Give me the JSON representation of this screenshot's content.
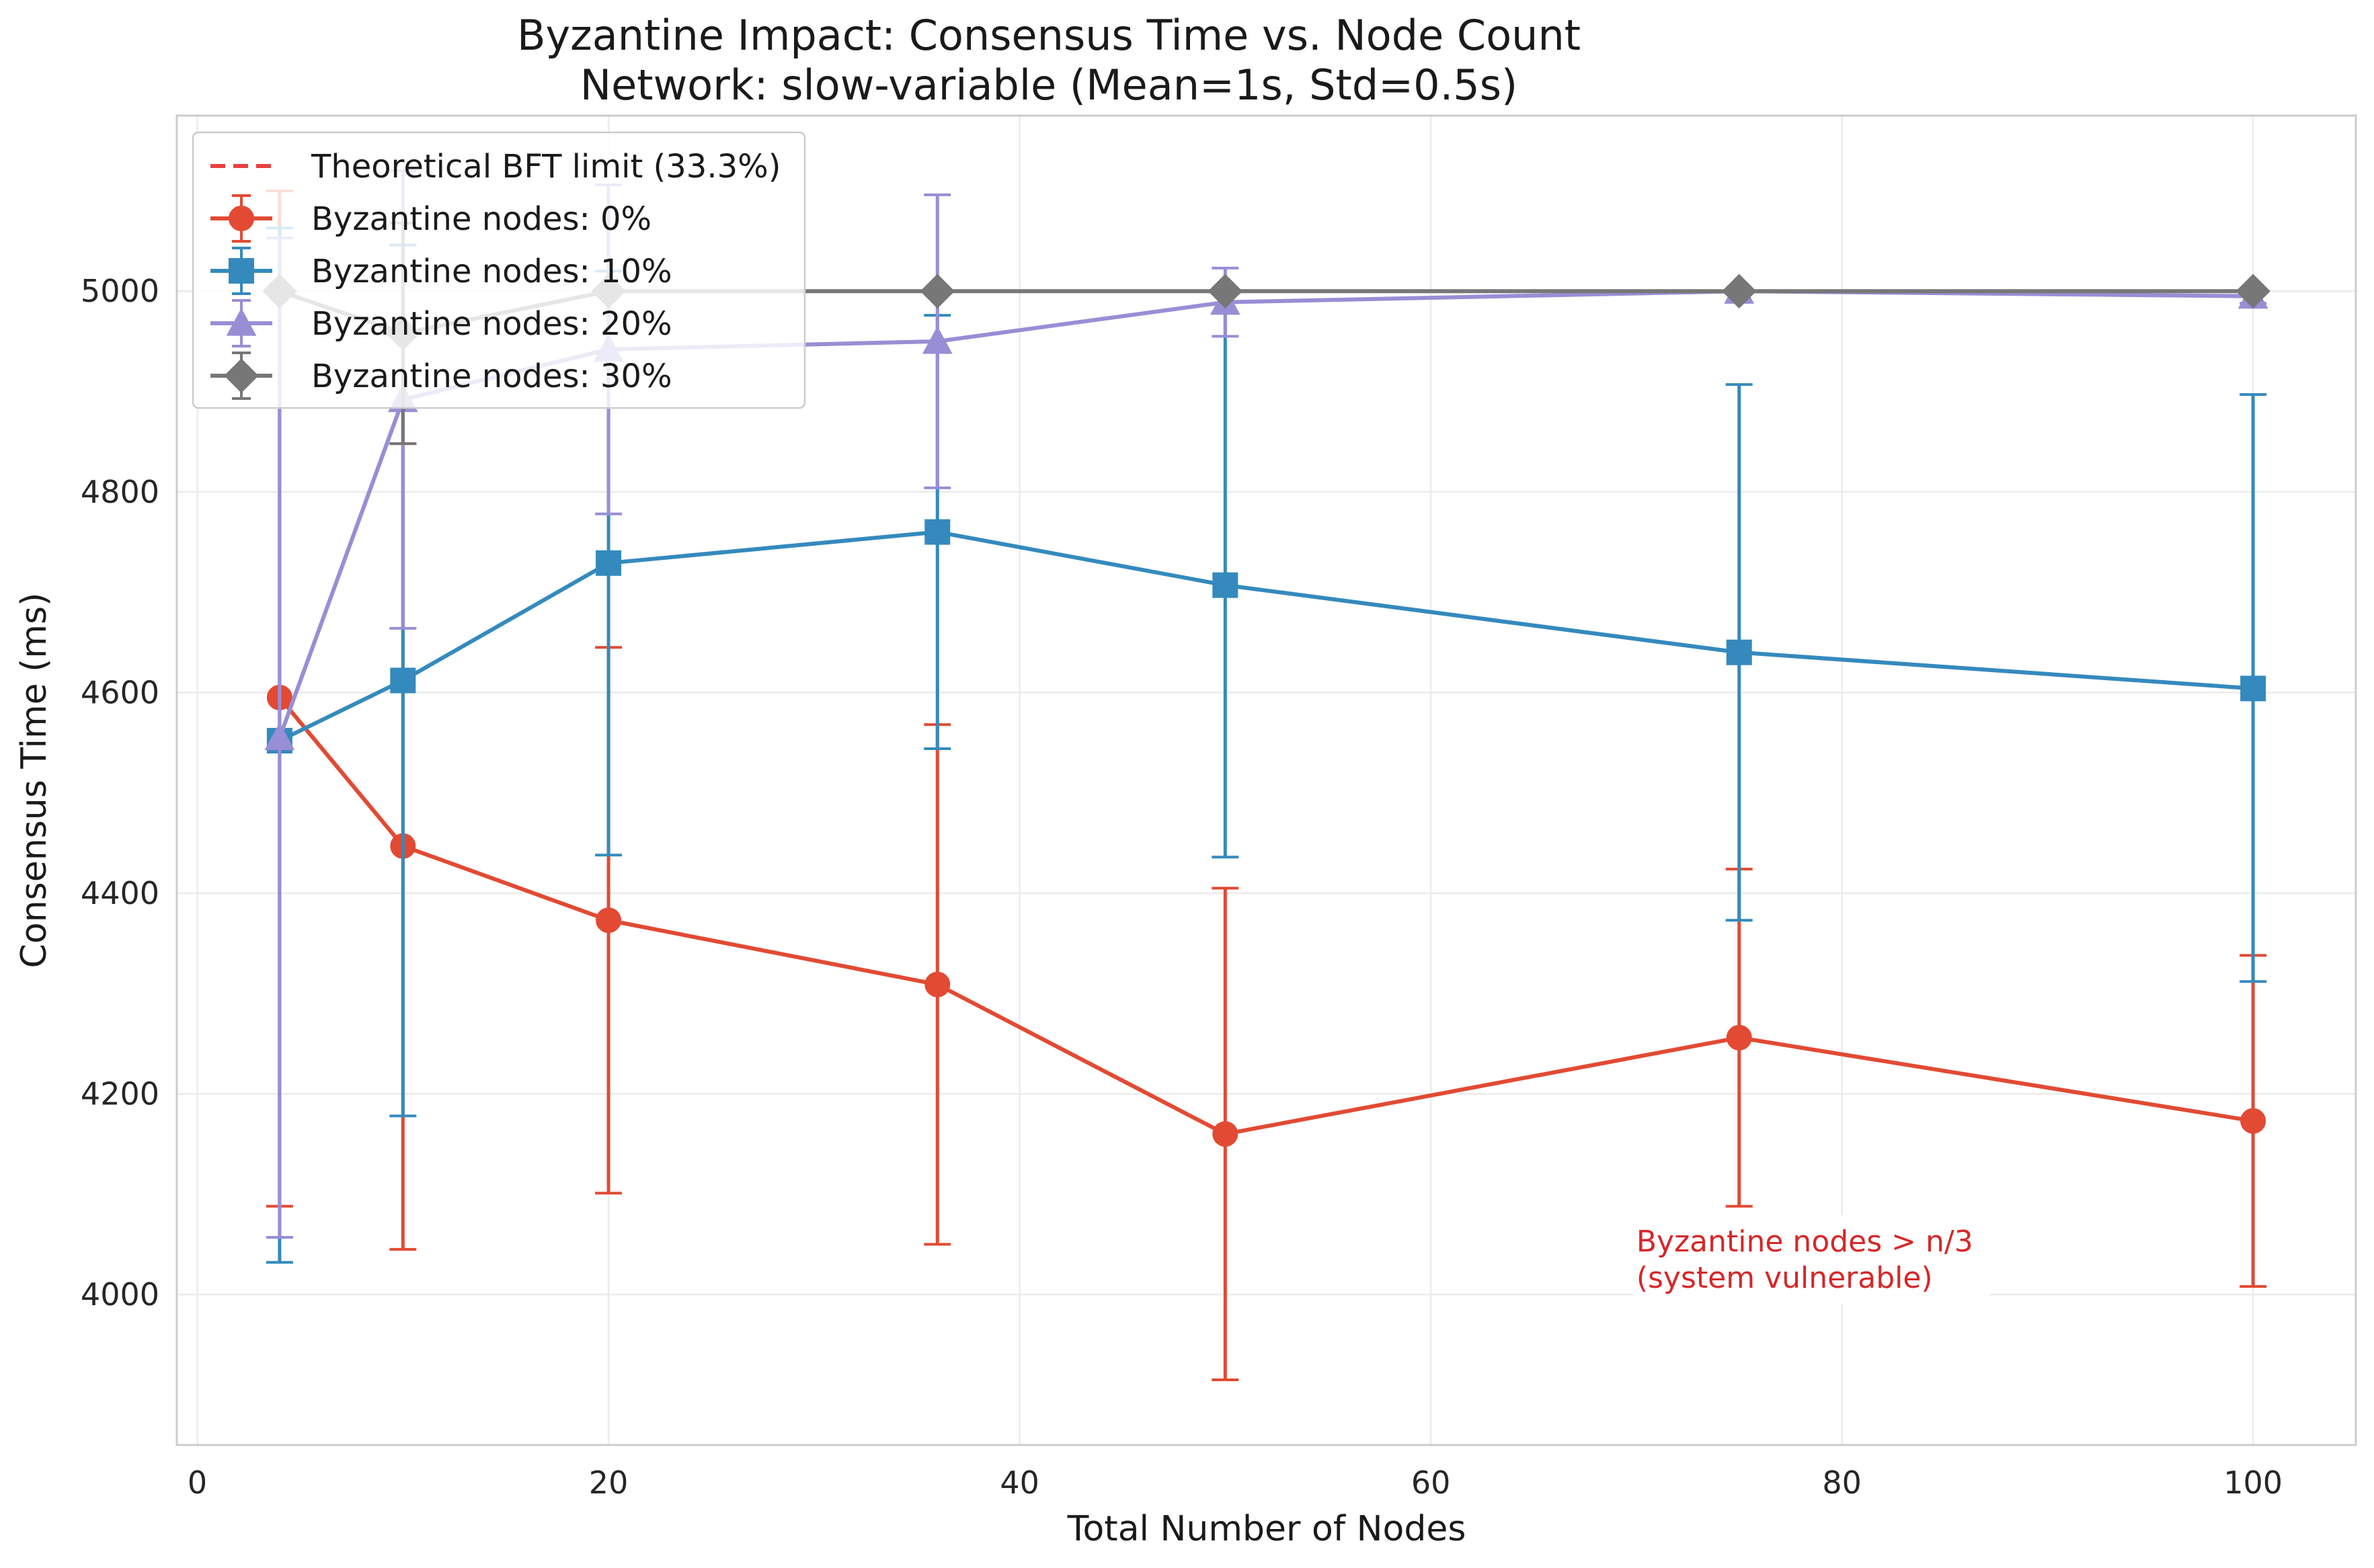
{
  "chart_data": {
    "type": "line",
    "title": "Byzantine Impact: Consensus Time vs. Node Count",
    "subtitle": "Network: slow-variable (Mean=1s, Std=0.5s)",
    "xlabel": "Total Number of Nodes",
    "ylabel": "Consensus Time (ms)",
    "xlim": [
      -1,
      105
    ],
    "ylim": [
      3850,
      5175
    ],
    "xticks": [
      0,
      20,
      40,
      60,
      80,
      100
    ],
    "yticks": [
      4000,
      4200,
      4400,
      4600,
      4800,
      5000
    ],
    "grid": true,
    "legend_position": "top-left",
    "x": [
      4,
      10,
      20,
      36,
      50,
      75,
      100
    ],
    "series": [
      {
        "name": "Byzantine nodes: 0%",
        "color": "#e24a33",
        "marker": "circle",
        "values": [
          4595,
          4447,
          4373,
          4309,
          4160,
          4256,
          4173
        ],
        "err_low": [
          4088,
          4045,
          4101,
          4050,
          3915,
          4088,
          4008
        ],
        "err_high": [
          5100,
          4848,
          4645,
          4568,
          4405,
          4424,
          4338
        ]
      },
      {
        "name": "Byzantine nodes: 10%",
        "color": "#348abd",
        "marker": "square",
        "values": [
          4552,
          4612,
          4729,
          4760,
          4707,
          4640,
          4604
        ],
        "err_low": [
          4032,
          4178,
          4438,
          4544,
          4436,
          4373,
          4312
        ],
        "err_high": [
          5063,
          5046,
          5020,
          4976,
          4978,
          4907,
          4897
        ]
      },
      {
        "name": "Byzantine nodes: 20%",
        "color": "#988ed5",
        "marker": "triangle",
        "values": [
          4555,
          4892,
          4942,
          4950,
          4989,
          5000,
          4995
        ],
        "err_low": [
          4057,
          4664,
          4778,
          4804,
          4955,
          5000,
          4988
        ],
        "err_high": [
          5053,
          5120,
          5106,
          5096,
          5023,
          5000,
          5002
        ]
      },
      {
        "name": "Byzantine nodes: 30%",
        "color": "#777777",
        "marker": "diamond",
        "values": [
          5000,
          4958,
          5000,
          5000,
          5000,
          5000,
          5000
        ],
        "err_low": [
          5000,
          4848,
          5000,
          5000,
          5000,
          5000,
          5000
        ],
        "err_high": [
          5000,
          5068,
          5000,
          5000,
          5000,
          5000,
          5000
        ]
      }
    ],
    "reference_line": {
      "name": "Theoretical BFT limit (33.3%)",
      "color": "#e84040",
      "style": "dashed"
    },
    "annotation": {
      "lines": [
        "Byzantine nodes > n/3",
        "(system vulnerable)"
      ],
      "color": "#d62728",
      "x": 70,
      "y": 4000
    }
  }
}
